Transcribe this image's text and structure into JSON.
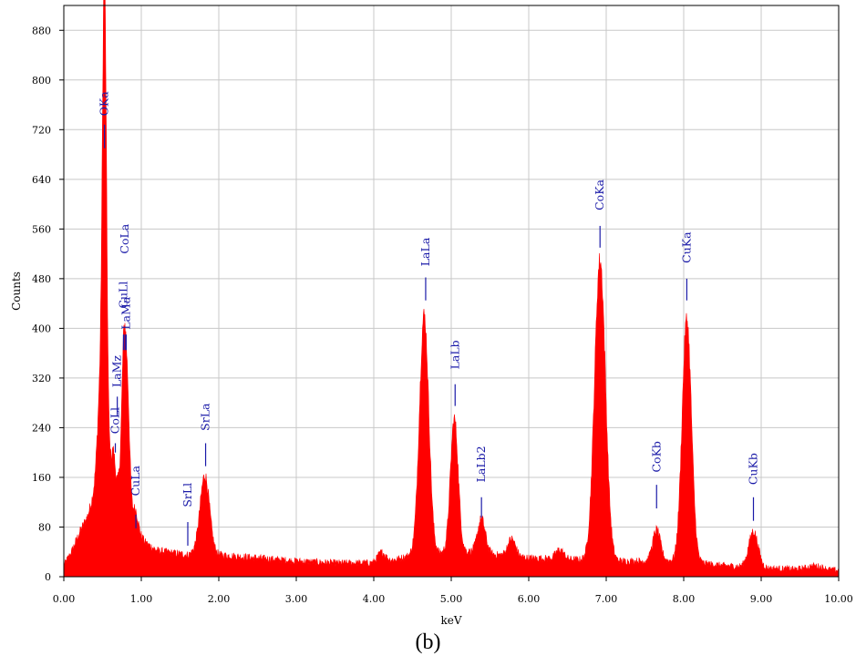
{
  "caption": "(b)",
  "chart_data": {
    "type": "area",
    "xlabel": "keV",
    "ylabel": "Counts",
    "xlim": [
      0,
      10
    ],
    "ylim": [
      0,
      920
    ],
    "grid": true,
    "x_ticks": [
      "0.00",
      "1.00",
      "2.00",
      "3.00",
      "4.00",
      "5.00",
      "6.00",
      "7.00",
      "8.00",
      "9.00",
      "10.00"
    ],
    "y_ticks": [
      "0",
      "80",
      "160",
      "240",
      "320",
      "400",
      "480",
      "560",
      "640",
      "720",
      "800",
      "880"
    ],
    "fill_color": "#ff0000",
    "label_color": "#1a1aa8",
    "baseline": [
      [
        0.0,
        18
      ],
      [
        0.1,
        40
      ],
      [
        0.2,
        70
      ],
      [
        0.3,
        95
      ],
      [
        0.4,
        135
      ],
      [
        0.45,
        170
      ],
      [
        0.6,
        165
      ],
      [
        0.7,
        150
      ],
      [
        0.85,
        110
      ],
      [
        0.95,
        75
      ],
      [
        1.05,
        55
      ],
      [
        1.2,
        42
      ],
      [
        1.4,
        38
      ],
      [
        1.6,
        35
      ],
      [
        1.7,
        40
      ],
      [
        2.0,
        35
      ],
      [
        2.5,
        30
      ],
      [
        3.0,
        25
      ],
      [
        3.5,
        22
      ],
      [
        4.0,
        22
      ],
      [
        4.3,
        28
      ],
      [
        4.5,
        35
      ],
      [
        4.9,
        38
      ],
      [
        5.2,
        40
      ],
      [
        5.6,
        35
      ],
      [
        6.0,
        30
      ],
      [
        6.5,
        28
      ],
      [
        7.0,
        25
      ],
      [
        7.5,
        25
      ],
      [
        8.0,
        25
      ],
      [
        8.5,
        18
      ],
      [
        9.0,
        14
      ],
      [
        9.5,
        12
      ],
      [
        10.0,
        10
      ]
    ],
    "peaks": [
      {
        "center": 0.525,
        "height": 650,
        "width": 0.025
      },
      {
        "center": 0.5,
        "height": 180,
        "width": 0.05
      },
      {
        "center": 0.64,
        "height": 40,
        "width": 0.02
      },
      {
        "center": 0.78,
        "height": 260,
        "width": 0.03
      },
      {
        "center": 0.83,
        "height": 120,
        "width": 0.025
      },
      {
        "center": 0.93,
        "height": 25,
        "width": 0.03
      },
      {
        "center": 1.82,
        "height": 125,
        "width": 0.06
      },
      {
        "center": 4.1,
        "height": 15,
        "width": 0.05
      },
      {
        "center": 4.65,
        "height": 385,
        "width": 0.06
      },
      {
        "center": 5.04,
        "height": 215,
        "width": 0.05
      },
      {
        "center": 5.39,
        "height": 55,
        "width": 0.05
      },
      {
        "center": 5.78,
        "height": 28,
        "width": 0.05
      },
      {
        "center": 6.4,
        "height": 15,
        "width": 0.05
      },
      {
        "center": 6.92,
        "height": 485,
        "width": 0.07
      },
      {
        "center": 7.65,
        "height": 50,
        "width": 0.05
      },
      {
        "center": 8.04,
        "height": 390,
        "width": 0.06
      },
      {
        "center": 8.9,
        "height": 58,
        "width": 0.06
      },
      {
        "center": 9.7,
        "height": 6,
        "width": 0.1
      }
    ],
    "peak_labels": [
      {
        "text": "OKa",
        "x": 0.525,
        "y_label": 742,
        "tick_top": 728,
        "tick_bottom": 690
      },
      {
        "text": "CoLa",
        "x": 0.79,
        "y_label": 520,
        "tick_top": 390,
        "tick_bottom": 365
      },
      {
        "text": "CuLl",
        "x": 0.77,
        "y_label": 432,
        "tick_top": 390,
        "tick_bottom": 365
      },
      {
        "text": "LaMa",
        "x": 0.805,
        "y_label": 398,
        "tick_top": 390,
        "tick_bottom": 365
      },
      {
        "text": "LaMz",
        "x": 0.69,
        "y_label": 305,
        "tick_top": 290,
        "tick_bottom": 260
      },
      {
        "text": "CoLl",
        "x": 0.665,
        "y_label": 230,
        "tick_top": 215,
        "tick_bottom": 200
      },
      {
        "text": "CuLa",
        "x": 0.93,
        "y_label": 130,
        "tick_top": 100,
        "tick_bottom": 78
      },
      {
        "text": "SrLl",
        "x": 1.6,
        "y_label": 112,
        "tick_top": 88,
        "tick_bottom": 50
      },
      {
        "text": "SrLa",
        "x": 1.83,
        "y_label": 235,
        "tick_top": 215,
        "tick_bottom": 178
      },
      {
        "text": "LaLa",
        "x": 4.67,
        "y_label": 500,
        "tick_top": 482,
        "tick_bottom": 445
      },
      {
        "text": "LaLb",
        "x": 5.05,
        "y_label": 334,
        "tick_top": 310,
        "tick_bottom": 275
      },
      {
        "text": "LaLb2",
        "x": 5.39,
        "y_label": 152,
        "tick_top": 128,
        "tick_bottom": 95
      },
      {
        "text": "CoKa",
        "x": 6.92,
        "y_label": 590,
        "tick_top": 565,
        "tick_bottom": 530
      },
      {
        "text": "CoKb",
        "x": 7.65,
        "y_label": 168,
        "tick_top": 148,
        "tick_bottom": 110
      },
      {
        "text": "CuKa",
        "x": 8.04,
        "y_label": 505,
        "tick_top": 480,
        "tick_bottom": 445
      },
      {
        "text": "CuKb",
        "x": 8.9,
        "y_label": 148,
        "tick_top": 128,
        "tick_bottom": 90
      }
    ]
  }
}
